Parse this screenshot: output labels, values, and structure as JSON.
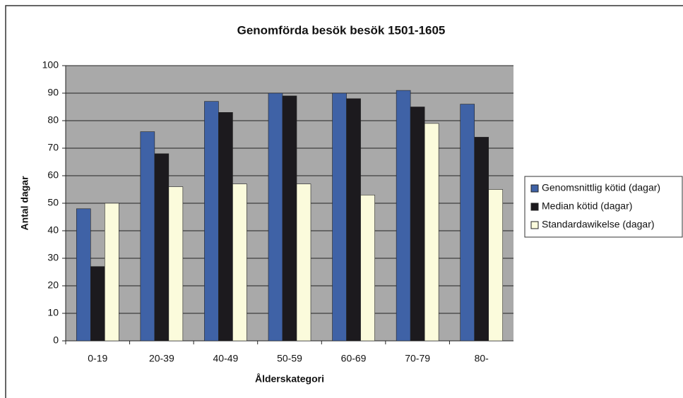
{
  "chart_data": {
    "type": "bar",
    "title": "Genomförda besök besök 1501-1605",
    "x_label": "Ålderskategori",
    "y_label": "Antal dagar",
    "categories": [
      "0-19",
      "20-39",
      "40-49",
      "50-59",
      "60-69",
      "70-79",
      "80-"
    ],
    "series": [
      {
        "name": "Genomsnittlig kötid (dagar)",
        "color": "#3f62a6",
        "values": [
          48,
          76,
          87,
          90,
          90,
          91,
          86
        ]
      },
      {
        "name": "Median kötid (dagar)",
        "color": "#1c1a1e",
        "values": [
          27,
          68,
          83,
          89,
          88,
          85,
          74
        ]
      },
      {
        "name": "Standardawikelse (dagar)",
        "color": "#fbfbdc",
        "values": [
          50,
          56,
          57,
          57,
          53,
          79,
          55
        ]
      }
    ],
    "ylim": [
      0,
      100
    ],
    "yticks": [
      0,
      10,
      20,
      30,
      40,
      50,
      60,
      70,
      80,
      90,
      100
    ],
    "grid": true,
    "legend": "right"
  }
}
